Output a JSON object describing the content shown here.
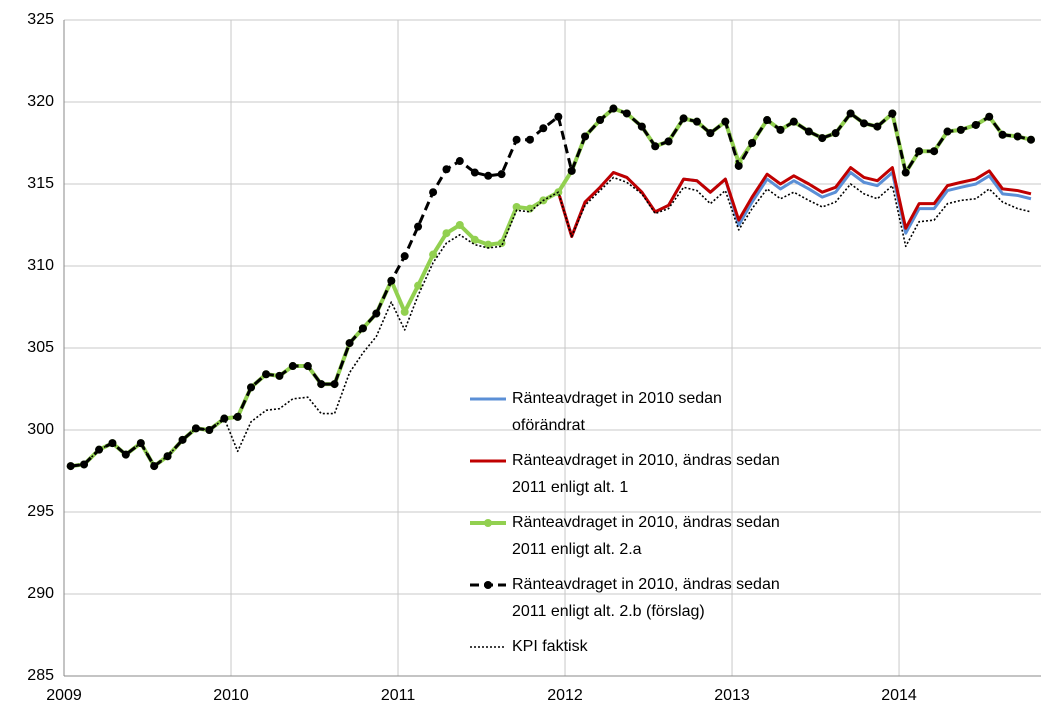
{
  "chart_data": {
    "type": "line",
    "x": [
      2009.04,
      2009.12,
      2009.21,
      2009.29,
      2009.37,
      2009.46,
      2009.54,
      2009.62,
      2009.71,
      2009.79,
      2009.87,
      2009.96,
      2010.04,
      2010.12,
      2010.21,
      2010.29,
      2010.37,
      2010.46,
      2010.54,
      2010.62,
      2010.71,
      2010.79,
      2010.87,
      2010.96,
      2011.04,
      2011.12,
      2011.21,
      2011.29,
      2011.37,
      2011.46,
      2011.54,
      2011.62,
      2011.71,
      2011.79,
      2011.87,
      2011.96,
      2012.04,
      2012.12,
      2012.21,
      2012.29,
      2012.37,
      2012.46,
      2012.54,
      2012.62,
      2012.71,
      2012.79,
      2012.87,
      2012.96,
      2013.04,
      2013.12,
      2013.21,
      2013.29,
      2013.37,
      2013.46,
      2013.54,
      2013.62,
      2013.71,
      2013.79,
      2013.87,
      2013.96,
      2014.04,
      2014.12,
      2014.21,
      2014.29,
      2014.37,
      2014.46,
      2014.54,
      2014.62,
      2014.71,
      2014.79
    ],
    "series": [
      {
        "name": "Ränteavdraget in 2010 sedan oförändrat",
        "color": "#5b8fd6",
        "line_style": "solid",
        "marker": false,
        "values": [
          297.8,
          297.9,
          298.8,
          299.2,
          298.5,
          299.2,
          297.8,
          298.4,
          299.4,
          300.1,
          300.0,
          300.7,
          300.8,
          302.6,
          303.4,
          303.3,
          303.9,
          303.9,
          302.8,
          302.8,
          305.3,
          306.2,
          307.1,
          309.1,
          307.2,
          308.8,
          310.7,
          312.0,
          312.5,
          311.6,
          311.3,
          311.4,
          313.6,
          313.5,
          314.0,
          314.5,
          311.8,
          313.9,
          314.8,
          315.7,
          315.4,
          314.5,
          313.3,
          313.7,
          315.3,
          315.2,
          314.5,
          315.3,
          312.5,
          313.9,
          315.3,
          314.7,
          315.2,
          314.7,
          314.2,
          314.5,
          315.7,
          315.1,
          314.9,
          315.7,
          312.0,
          313.5,
          313.5,
          314.6,
          314.8,
          315.0,
          315.5,
          314.4,
          314.3,
          314.1
        ]
      },
      {
        "name": "Ränteavdraget in 2010, ändras sedan 2011 enligt alt. 1",
        "color": "#c00000",
        "line_style": "solid",
        "marker": false,
        "values": [
          null,
          null,
          null,
          null,
          null,
          null,
          null,
          null,
          null,
          null,
          null,
          null,
          null,
          null,
          null,
          null,
          null,
          null,
          null,
          null,
          null,
          null,
          null,
          309.1,
          307.2,
          308.8,
          310.7,
          312.0,
          312.5,
          311.6,
          311.3,
          311.4,
          313.6,
          313.5,
          314.0,
          314.5,
          311.8,
          313.9,
          314.8,
          315.7,
          315.4,
          314.5,
          313.3,
          313.7,
          315.3,
          315.2,
          314.5,
          315.3,
          312.8,
          314.2,
          315.6,
          315.0,
          315.5,
          315.0,
          314.5,
          314.8,
          316.0,
          315.4,
          315.2,
          316.0,
          312.3,
          313.8,
          313.8,
          314.9,
          315.1,
          315.3,
          315.8,
          314.7,
          314.6,
          314.4
        ]
      },
      {
        "name": "Ränteavdraget in 2010, ändras sedan 2011 enligt alt. 2.a",
        "color": "#92d050",
        "line_style": "solid",
        "marker": true,
        "values": [
          297.8,
          297.9,
          298.8,
          299.2,
          298.5,
          299.2,
          297.8,
          298.4,
          299.4,
          300.1,
          300.0,
          300.7,
          300.8,
          302.6,
          303.4,
          303.3,
          303.9,
          303.9,
          302.8,
          302.8,
          305.3,
          306.2,
          307.1,
          309.1,
          307.2,
          308.8,
          310.7,
          312.0,
          312.5,
          311.6,
          311.3,
          311.4,
          313.6,
          313.5,
          314.0,
          314.5,
          315.8,
          317.9,
          318.9,
          319.6,
          319.3,
          318.5,
          317.3,
          317.6,
          319.0,
          318.8,
          318.1,
          318.8,
          316.3,
          317.5,
          318.9,
          318.3,
          318.8,
          318.2,
          317.8,
          318.1,
          319.3,
          318.7,
          318.5,
          319.3,
          315.7,
          317.0,
          317.0,
          318.2,
          318.3,
          318.6,
          319.1,
          318.0,
          317.9,
          317.7
        ]
      },
      {
        "name": "Ränteavdraget in 2010, ändras sedan 2011 enligt alt. 2.b (förslag)",
        "color": "#000000",
        "line_style": "dashed",
        "marker": true,
        "values": [
          297.8,
          297.9,
          298.8,
          299.2,
          298.5,
          299.2,
          297.8,
          298.4,
          299.4,
          300.1,
          300.0,
          300.7,
          300.8,
          302.6,
          303.4,
          303.3,
          303.9,
          303.9,
          302.8,
          302.8,
          305.3,
          306.2,
          307.1,
          309.1,
          310.6,
          312.4,
          314.5,
          315.9,
          316.4,
          315.7,
          315.5,
          315.6,
          317.7,
          317.7,
          318.4,
          319.1,
          315.8,
          317.9,
          318.9,
          319.6,
          319.3,
          318.5,
          317.3,
          317.6,
          319.0,
          318.8,
          318.1,
          318.8,
          316.1,
          317.5,
          318.9,
          318.3,
          318.8,
          318.2,
          317.8,
          318.1,
          319.3,
          318.7,
          318.5,
          319.3,
          315.7,
          317.0,
          317.0,
          318.2,
          318.3,
          318.6,
          319.1,
          318.0,
          317.9,
          317.7
        ]
      },
      {
        "name": "KPI faktisk",
        "color": "#000000",
        "line_style": "dotted",
        "marker": false,
        "values": [
          297.8,
          297.9,
          298.8,
          299.2,
          298.5,
          299.2,
          297.8,
          298.4,
          299.4,
          300.1,
          300.0,
          300.7,
          298.7,
          300.5,
          301.2,
          301.3,
          301.9,
          302.0,
          301.0,
          301.0,
          303.5,
          304.7,
          305.7,
          307.8,
          306.1,
          308.2,
          310.2,
          311.4,
          311.9,
          311.3,
          311.1,
          311.2,
          313.4,
          313.3,
          314.0,
          314.5,
          311.8,
          313.7,
          314.6,
          315.4,
          315.1,
          314.4,
          313.2,
          313.5,
          314.8,
          314.6,
          313.8,
          314.6,
          312.2,
          313.5,
          314.7,
          314.1,
          314.5,
          314.0,
          313.6,
          313.9,
          315.0,
          314.4,
          314.1,
          314.9,
          311.2,
          312.7,
          312.8,
          313.8,
          314.0,
          314.1,
          314.7,
          313.9,
          313.5,
          313.3
        ]
      }
    ],
    "xlim": [
      2009,
      2014.85
    ],
    "xticks": [
      2009,
      2010,
      2011,
      2012,
      2013,
      2014
    ],
    "ylim": [
      285,
      325
    ],
    "yticks": [
      285,
      290,
      295,
      300,
      305,
      310,
      315,
      320,
      325
    ],
    "grid": true
  }
}
